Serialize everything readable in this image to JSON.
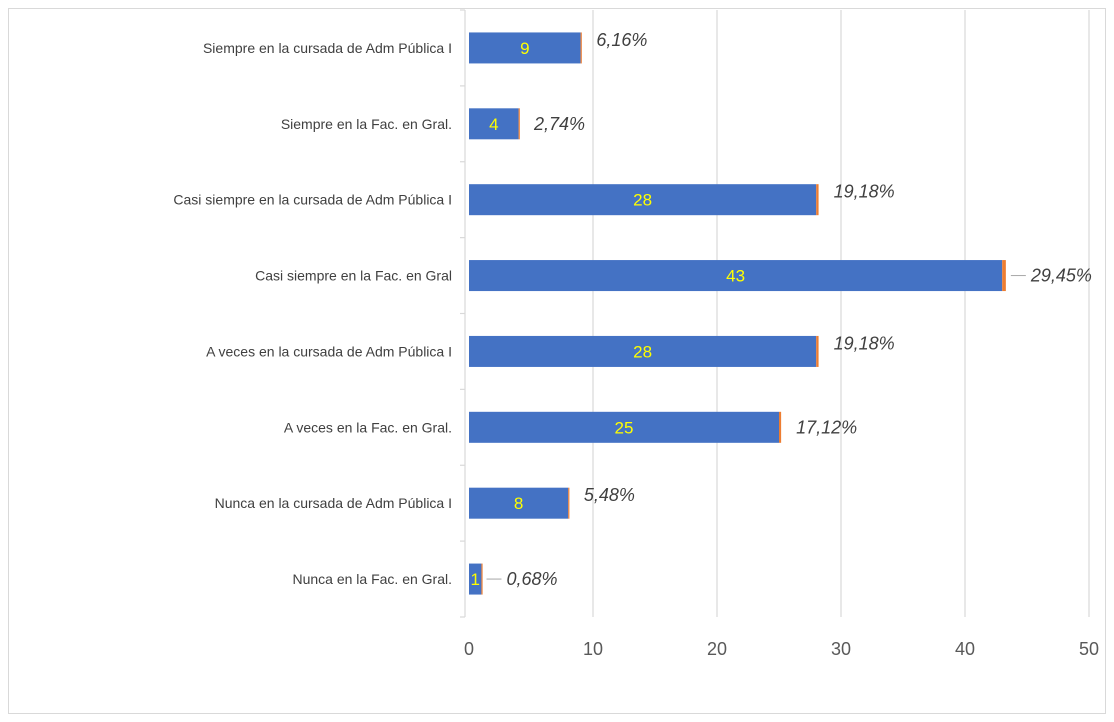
{
  "chart_data": {
    "type": "bar",
    "orientation": "horizontal",
    "stacked": true,
    "categories": [
      "Siempre en la cursada de Adm Pública I",
      "Siempre en la Fac. en Gral.",
      "Casi siempre en la cursada de Adm Pública I",
      "Casi siempre en la Fac. en Gral",
      "A veces en la cursada de Adm Pública I",
      "A veces en la Fac. en Gral.",
      "Nunca en la cursada de Adm Pública I",
      "Nunca en la Fac. en Gral."
    ],
    "series": [
      {
        "values": [
          9,
          4,
          28,
          43,
          28,
          25,
          8,
          1
        ],
        "value_labels": [
          "9",
          "4",
          "28",
          "43",
          "28",
          "25",
          "8",
          "1"
        ],
        "color": "#4472c4",
        "label_color": "#ffff00"
      },
      {
        "values": [
          0.0616,
          0.0274,
          0.1918,
          0.2945,
          0.1918,
          0.1712,
          0.0548,
          0.0068
        ],
        "value_labels": [
          "6,16%",
          "2,74%",
          "19,18%",
          "29,45%",
          "19,18%",
          "17,12%",
          "5,48%",
          "0,68%"
        ],
        "color": "#ed7d31",
        "label_style": "italic"
      }
    ],
    "xlim": [
      0,
      50
    ],
    "x_ticks": [
      "0",
      "10",
      "20",
      "30",
      "40",
      "50"
    ],
    "grid": "vertical",
    "legend": "none",
    "title": "",
    "xlabel": "",
    "ylabel": ""
  }
}
